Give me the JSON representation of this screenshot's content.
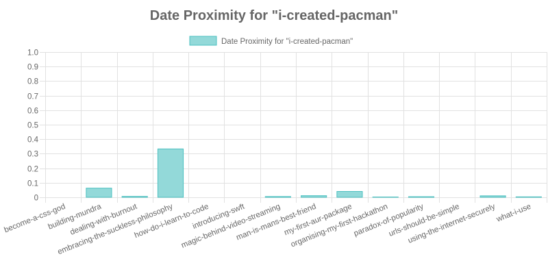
{
  "chart_data": {
    "type": "bar",
    "title": "Date Proximity for \"i-created-pacman\"",
    "legend": {
      "position": "top",
      "entries": [
        "Date Proximity for \"i-created-pacman\""
      ]
    },
    "categories": [
      "become-a-css-god",
      "building-mundra",
      "dealing-with-burnout",
      "embracing-the-suckless-philosophy",
      "how-do-i-learn-to-code",
      "introducing-swft",
      "magic-behind-video-streaming",
      "man-is-mans-best-friend",
      "my-first-aur-package",
      "organising-my-first-hackathon",
      "paradox-of-popularity",
      "urls-should-be-simple",
      "using-the-internet-securely",
      "what-i-use"
    ],
    "series": [
      {
        "name": "Date Proximity for \"i-created-pacman\"",
        "values": [
          0,
          0.063,
          0.006,
          0.333,
          0,
          0,
          0.005,
          0.011,
          0.04,
          0.002,
          0.004,
          0,
          0.01,
          0.003
        ]
      }
    ],
    "ylim": [
      0,
      1.0
    ],
    "yticks": [
      "0",
      "0.1",
      "0.2",
      "0.3",
      "0.4",
      "0.5",
      "0.6",
      "0.7",
      "0.8",
      "0.9",
      "1.0"
    ],
    "grid": true,
    "colors": {
      "bar_fill": "#93d9d9",
      "bar_stroke": "#4bc0c0"
    }
  }
}
